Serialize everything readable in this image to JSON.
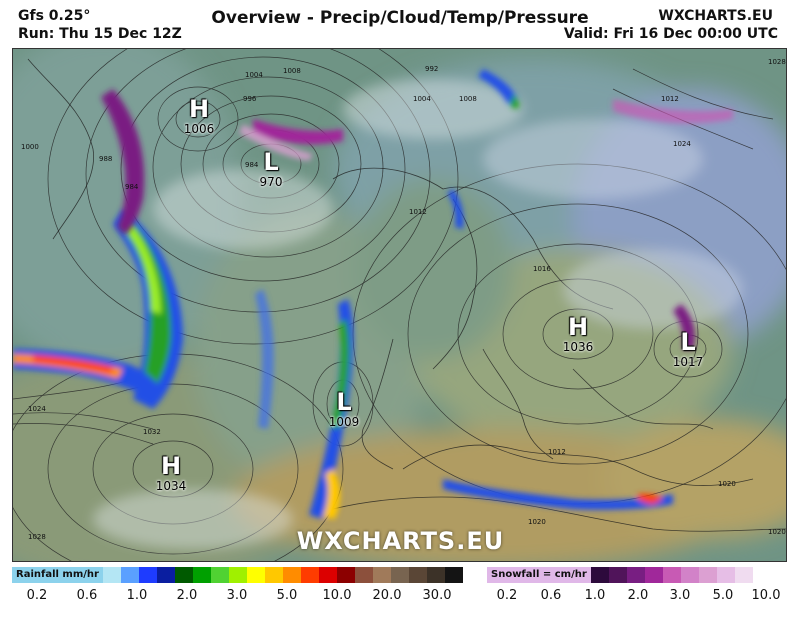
{
  "header": {
    "model": "Gfs 0.25°",
    "run": "Run: Thu 15 Dec 12Z",
    "title": "Overview - Precip/Cloud/Temp/Pressure",
    "brand": "WXCHARTS.EU",
    "valid": "Valid: Fri 16 Dec 00:00 UTC"
  },
  "pressure_systems": [
    {
      "type": "H",
      "value": "1006"
    },
    {
      "type": "L",
      "value": "970"
    },
    {
      "type": "H",
      "value": "1036"
    },
    {
      "type": "L",
      "value": "1017"
    },
    {
      "type": "L",
      "value": "1009"
    },
    {
      "type": "H",
      "value": "1034"
    }
  ],
  "isobar_labels": [
    "1004",
    "1008",
    "996",
    "992",
    "988",
    "984",
    "1000",
    "984",
    "1004",
    "1008",
    "1012",
    "1016",
    "1012",
    "1024",
    "1028",
    "1024",
    "1032",
    "1028",
    "1020",
    "1020",
    "1012",
    "1020"
  ],
  "watermark": "WXCHARTS.EU",
  "rain_legend": {
    "label": "Rainfall mm/hr",
    "colors": [
      "#b4e6f4",
      "#5aa0ff",
      "#1e3cff",
      "#0a1ea0",
      "#005a00",
      "#00a000",
      "#50d232",
      "#a0f000",
      "#ffff00",
      "#ffc800",
      "#ff8c00",
      "#ff3c00",
      "#dc0000",
      "#8c0000",
      "#8c503c",
      "#a07a5a",
      "#786450",
      "#5a4636",
      "#3c3228",
      "#141414"
    ],
    "ticks": [
      "0.2",
      "0.6",
      "1.0",
      "2.0",
      "3.0",
      "5.0",
      "10.0",
      "20.0",
      "30.0"
    ]
  },
  "snow_legend": {
    "label": "Snowfall = cm/hr",
    "colors": [
      "#2d0a3c",
      "#50145a",
      "#781e82",
      "#a0289a",
      "#c85ab4",
      "#d282c8",
      "#dca0d2",
      "#e6bee6",
      "#f0dcf0",
      "#ffffff"
    ],
    "ticks": [
      "0.2",
      "0.6",
      "1.0",
      "2.0",
      "3.0",
      "5.0",
      "10.0"
    ]
  },
  "colors": {
    "sea_base": "#5f8a7e",
    "land_base": "#8aa36e",
    "cold_land": "#8ca5b4",
    "warm_land": "#b4a064",
    "rain_blue": "#2450e6",
    "rain_green": "#28a028",
    "snow_purple": "#7a1e82"
  }
}
